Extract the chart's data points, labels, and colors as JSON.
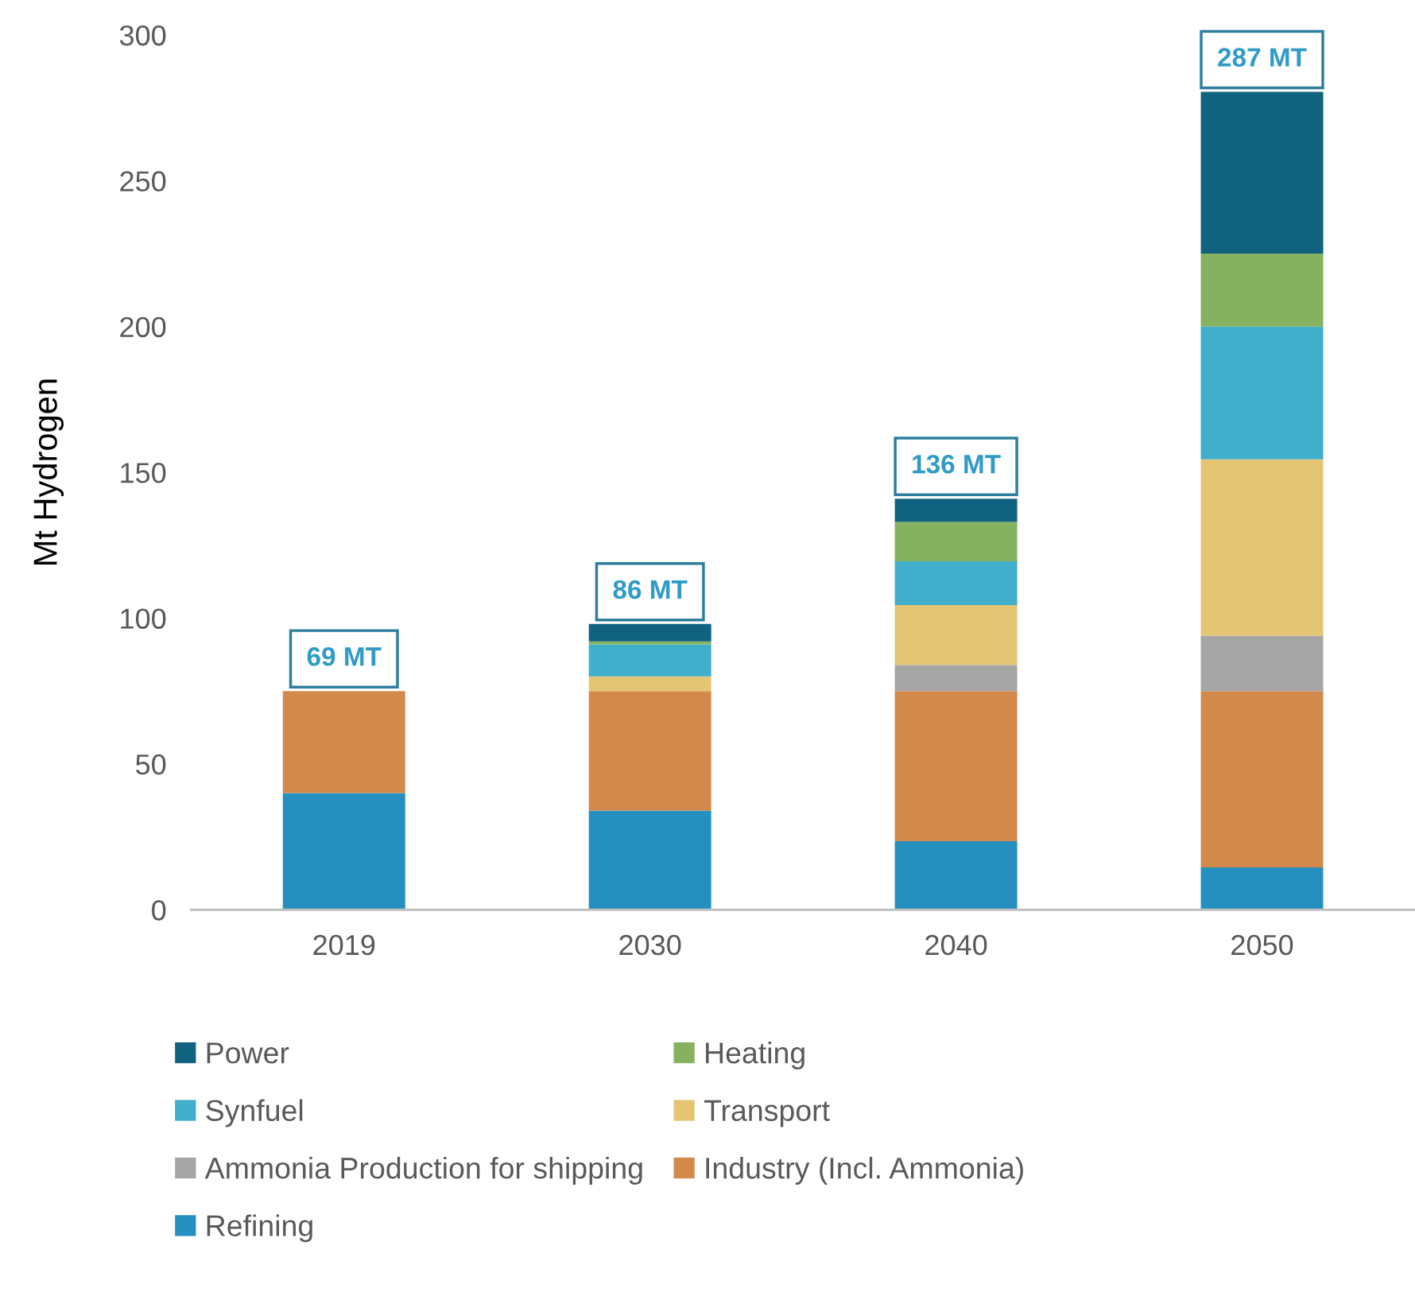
{
  "chart_data": {
    "type": "bar",
    "stacked": true,
    "ylabel": "Mt Hydrogen",
    "categories": [
      "2019",
      "2030",
      "2040",
      "2050"
    ],
    "series": [
      {
        "name": "Refining",
        "color": "#2590c0",
        "values": [
          40,
          34,
          23.5,
          14.5
        ]
      },
      {
        "name": "Industry (Incl. Ammonia)",
        "color": "#d4894c",
        "values": [
          35,
          41,
          51.5,
          60.5
        ]
      },
      {
        "name": "Ammonia Production for shipping",
        "color": "#a5a5a5",
        "values": [
          0,
          0,
          9,
          19
        ]
      },
      {
        "name": "Transport",
        "color": "#e4c574",
        "values": [
          0,
          5,
          20.5,
          60.5
        ]
      },
      {
        "name": "Synfuel",
        "color": "#41aecb",
        "values": [
          0,
          11,
          15,
          45.5
        ]
      },
      {
        "name": "Heating",
        "color": "#86b25f",
        "values": [
          0,
          1,
          13.5,
          25
        ]
      },
      {
        "name": "Power",
        "color": "#10627f",
        "values": [
          0,
          6,
          8,
          55.5
        ]
      }
    ],
    "annotations": [
      {
        "text": "69 MT",
        "x": "2019",
        "y": 75
      },
      {
        "text": "86 MT",
        "x": "2030",
        "y": 98
      },
      {
        "text": "136 MT",
        "x": "2040",
        "y": 141
      },
      {
        "text": "287 MT",
        "x": "2050",
        "y": 280.5
      }
    ],
    "ylim": [
      0,
      300
    ],
    "yticks": [
      0,
      50,
      100,
      150,
      200,
      250,
      300
    ],
    "grid": false,
    "legend": "bottom"
  }
}
